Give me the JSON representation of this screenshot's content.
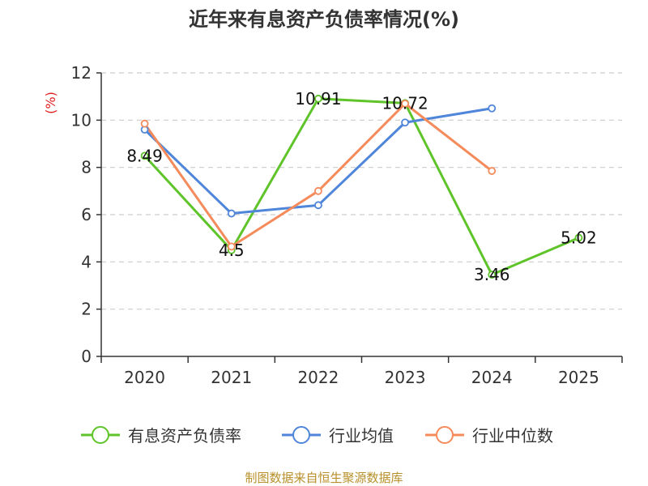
{
  "chart_data": {
    "type": "line",
    "title": "近年来有息资产负债率情况(%)",
    "ylabel": "(%)",
    "ylim": [
      0,
      12
    ],
    "yticks": [
      0,
      2,
      4,
      6,
      8,
      10,
      12
    ],
    "categories": [
      "2020",
      "2021",
      "2022",
      "2023",
      "2024",
      "2025"
    ],
    "grid": true,
    "legend_position": "bottom",
    "series": [
      {
        "name": "有息资产负债率",
        "color": "#5ec429",
        "values": [
          8.49,
          4.5,
          10.91,
          10.72,
          3.46,
          5.02
        ],
        "labels": [
          "8.49",
          "4.5",
          "10.91",
          "10.72",
          "3.46",
          "5.02"
        ]
      },
      {
        "name": "行业均值",
        "color": "#4f86d9",
        "values": [
          9.6,
          6.05,
          6.4,
          9.9,
          10.5,
          null
        ]
      },
      {
        "name": "行业中位数",
        "color": "#f58a5b",
        "values": [
          9.85,
          4.65,
          7.0,
          10.7,
          7.85,
          null
        ]
      }
    ]
  },
  "source": "制图数据来自恒生聚源数据库"
}
